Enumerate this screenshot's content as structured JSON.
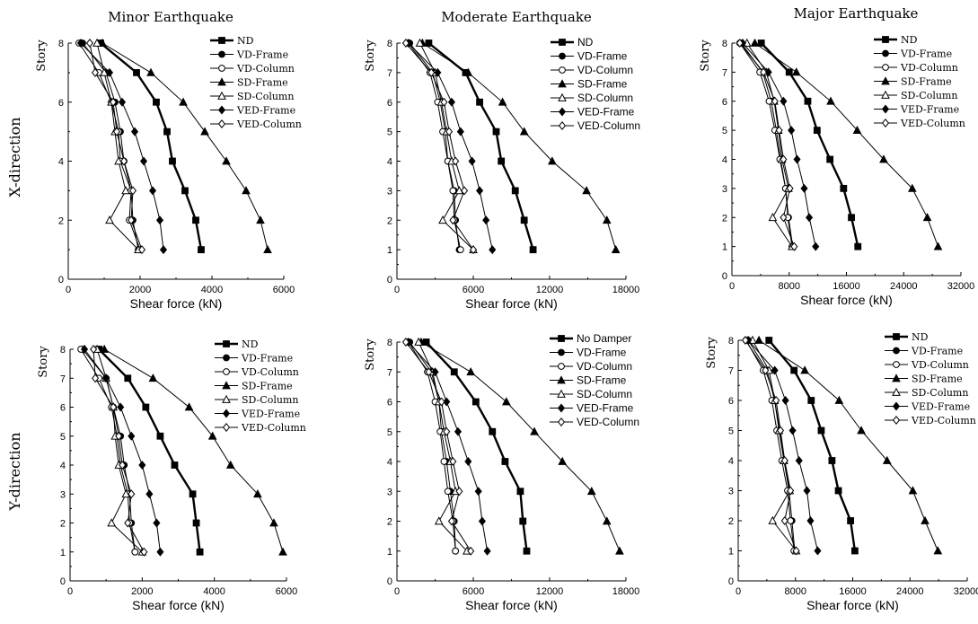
{
  "figure": {
    "column_titles": [
      "Minor Earthquake",
      "Moderate Earthquake",
      "Major Earthquake"
    ],
    "row_labels": [
      "X-direction",
      "Y-direction"
    ]
  },
  "legend_styles": [
    {
      "marker": "square",
      "fill": "filled",
      "thick": true
    },
    {
      "marker": "circle",
      "fill": "filled",
      "thick": false
    },
    {
      "marker": "circle",
      "fill": "open",
      "thick": false
    },
    {
      "marker": "triangle",
      "fill": "filled",
      "thick": false
    },
    {
      "marker": "triangle",
      "fill": "open",
      "thick": false
    },
    {
      "marker": "diamond",
      "fill": "filled",
      "thick": false
    },
    {
      "marker": "diamond",
      "fill": "open",
      "thick": false
    }
  ],
  "chart_data": [
    {
      "type": "line",
      "title": "Minor Earthquake",
      "row": "X-direction",
      "xlabel": "Shear force (kN)",
      "ylabel": "Story",
      "xlim": [
        0,
        6000
      ],
      "xticks": [
        0,
        2000,
        4000,
        6000
      ],
      "ylim": [
        0,
        8
      ],
      "yticks": [
        0,
        2,
        4,
        6,
        8
      ],
      "y": [
        1,
        2,
        3,
        4,
        5,
        6,
        7,
        8
      ],
      "series": [
        {
          "name": "ND",
          "values": [
            3700,
            3550,
            3250,
            2900,
            2750,
            2450,
            1900,
            900
          ]
        },
        {
          "name": "VD-Frame",
          "values": [
            1950,
            1800,
            1750,
            1550,
            1450,
            1300,
            1050,
            400
          ]
        },
        {
          "name": "VD-Column",
          "values": [
            2000,
            1700,
            1750,
            1450,
            1400,
            1200,
            850,
            300
          ]
        },
        {
          "name": "SD-Frame",
          "values": [
            5550,
            5350,
            4950,
            4400,
            3800,
            3200,
            2300,
            950
          ]
        },
        {
          "name": "SD-Column",
          "values": [
            1950,
            1150,
            1600,
            1400,
            1300,
            1200,
            1000,
            800
          ]
        },
        {
          "name": "VED-Frame",
          "values": [
            2650,
            2550,
            2350,
            2100,
            1850,
            1500,
            1150,
            350
          ]
        },
        {
          "name": "VED-Column",
          "values": [
            2050,
            1750,
            1800,
            1550,
            1350,
            1250,
            750,
            600
          ]
        }
      ]
    },
    {
      "type": "line",
      "title": "Moderate Earthquake",
      "row": "X-direction",
      "xlabel": "Shear force (kN)",
      "ylabel": "Story",
      "xlim": [
        0,
        18000
      ],
      "xticks": [
        0,
        6000,
        12000,
        18000
      ],
      "ylim": [
        0,
        8
      ],
      "yticks": [
        0,
        1,
        2,
        3,
        4,
        5,
        6,
        7,
        8
      ],
      "y": [
        1,
        2,
        3,
        4,
        5,
        6,
        7,
        8
      ],
      "series": [
        {
          "name": "ND",
          "values": [
            10700,
            10000,
            9300,
            8200,
            7800,
            6500,
            5400,
            2500
          ]
        },
        {
          "name": "VD-Frame",
          "values": [
            4900,
            4600,
            4500,
            4000,
            3800,
            3400,
            2800,
            1000
          ]
        },
        {
          "name": "VD-Column",
          "values": [
            5000,
            4500,
            4400,
            4000,
            3600,
            3200,
            2600,
            900
          ]
        },
        {
          "name": "SD-Frame",
          "values": [
            17200,
            16500,
            14900,
            12200,
            10000,
            8300,
            5600,
            2000
          ]
        },
        {
          "name": "SD-Column",
          "values": [
            6000,
            3600,
            4900,
            4300,
            3900,
            3500,
            3000,
            1800
          ]
        },
        {
          "name": "VED-Frame",
          "values": [
            7500,
            7000,
            6500,
            5900,
            5000,
            4300,
            3200,
            900
          ]
        },
        {
          "name": "VED-Column",
          "values": [
            6000,
            4400,
            5300,
            4600,
            4100,
            3700,
            2700,
            700
          ]
        }
      ]
    },
    {
      "type": "line",
      "title": "Major Earthquake",
      "row": "X-direction",
      "xlabel": "Shear force (kN)",
      "ylabel": "Story",
      "xlim": [
        0,
        32000
      ],
      "xticks": [
        0,
        8000,
        16000,
        24000,
        32000
      ],
      "ylim": [
        0,
        8
      ],
      "yticks": [
        0,
        1,
        2,
        3,
        4,
        5,
        6,
        7,
        8
      ],
      "y": [
        1,
        2,
        3,
        4,
        5,
        6,
        7,
        8
      ],
      "series": [
        {
          "name": "ND",
          "values": [
            17600,
            16700,
            15600,
            13700,
            11900,
            10600,
            8000,
            4100
          ]
        },
        {
          "name": "VD-Frame",
          "values": [
            8500,
            7900,
            7500,
            6800,
            6200,
            5500,
            4300,
            1300
          ]
        },
        {
          "name": "VD-Column",
          "values": [
            8400,
            7800,
            7500,
            6700,
            6000,
            5200,
            3900,
            1100
          ]
        },
        {
          "name": "SD-Frame",
          "values": [
            28800,
            27300,
            25200,
            21200,
            17500,
            13800,
            9000,
            3200
          ]
        },
        {
          "name": "SD-Column",
          "values": [
            8400,
            5700,
            7900,
            7000,
            6500,
            5900,
            4800,
            2100
          ]
        },
        {
          "name": "VED-Frame",
          "values": [
            11700,
            10800,
            10100,
            9100,
            8300,
            7200,
            5100,
            1500
          ]
        },
        {
          "name": "VED-Column",
          "values": [
            8700,
            7200,
            8100,
            7200,
            6600,
            6000,
            4400,
            1100
          ]
        }
      ]
    },
    {
      "type": "line",
      "title": "",
      "row": "Y-direction",
      "xlabel": "Shear force (kN)",
      "ylabel": "Story",
      "xlim": [
        0,
        6000
      ],
      "xticks": [
        0,
        2000,
        4000,
        6000
      ],
      "ylim": [
        0,
        8
      ],
      "yticks": [
        0,
        1,
        2,
        3,
        4,
        5,
        6,
        7,
        8
      ],
      "y": [
        1,
        2,
        3,
        4,
        5,
        6,
        7,
        8
      ],
      "series": [
        {
          "name": "ND",
          "values": [
            3600,
            3500,
            3400,
            2900,
            2500,
            2100,
            1600,
            800
          ]
        },
        {
          "name": "VD-Frame",
          "values": [
            1800,
            1700,
            1650,
            1500,
            1400,
            1200,
            1000,
            350
          ]
        },
        {
          "name": "VD-Column",
          "values": [
            1800,
            1650,
            1600,
            1400,
            1300,
            1150,
            800,
            300
          ]
        },
        {
          "name": "SD-Frame",
          "values": [
            5900,
            5650,
            5200,
            4450,
            3950,
            3300,
            2300,
            950
          ]
        },
        {
          "name": "SD-Column",
          "values": [
            2000,
            1150,
            1550,
            1350,
            1250,
            1200,
            1000,
            750
          ]
        },
        {
          "name": "VED-Frame",
          "values": [
            2500,
            2400,
            2200,
            2000,
            1700,
            1400,
            1000,
            400
          ]
        },
        {
          "name": "VED-Column",
          "values": [
            2050,
            1600,
            1700,
            1450,
            1350,
            1200,
            700,
            650
          ]
        }
      ]
    },
    {
      "type": "line",
      "title": "",
      "row": "Y-direction",
      "xlabel": "Shear force (kN)",
      "ylabel": "Story",
      "xlim": [
        0,
        18000
      ],
      "xticks": [
        0,
        6000,
        12000,
        18000
      ],
      "ylim": [
        0,
        8
      ],
      "yticks": [
        0,
        1,
        2,
        3,
        4,
        5,
        6,
        7,
        8
      ],
      "y": [
        1,
        2,
        3,
        4,
        5,
        6,
        7,
        8
      ],
      "series": [
        {
          "name": "No Damper",
          "values": [
            10200,
            9900,
            9700,
            8500,
            7500,
            6200,
            4500,
            2300
          ]
        },
        {
          "name": "VD-Frame",
          "values": [
            4600,
            4500,
            4200,
            3900,
            3500,
            3300,
            2700,
            1000
          ]
        },
        {
          "name": "VD-Column",
          "values": [
            4600,
            4400,
            4000,
            3700,
            3400,
            3000,
            2400,
            900
          ]
        },
        {
          "name": "SD-Frame",
          "values": [
            17500,
            16500,
            15300,
            13000,
            10800,
            8600,
            5800,
            1900
          ]
        },
        {
          "name": "SD-Column",
          "values": [
            5500,
            3300,
            4600,
            4200,
            3700,
            3300,
            2800,
            1700
          ]
        },
        {
          "name": "VED-Frame",
          "values": [
            7100,
            6700,
            6400,
            5600,
            4800,
            3900,
            3000,
            900
          ]
        },
        {
          "name": "VED-Column",
          "values": [
            5800,
            4300,
            4900,
            4400,
            3900,
            3500,
            2500,
            700
          ]
        }
      ]
    },
    {
      "type": "line",
      "title": "",
      "row": "Y-direction",
      "xlabel": "Shear force (kN)",
      "ylabel": "Story",
      "xlim": [
        0,
        32000
      ],
      "xticks": [
        0,
        8000,
        16000,
        24000,
        32000
      ],
      "ylim": [
        0,
        8
      ],
      "yticks": [
        0,
        1,
        2,
        3,
        4,
        5,
        6,
        7,
        8
      ],
      "y": [
        1,
        2,
        3,
        4,
        5,
        6,
        7,
        8
      ],
      "series": [
        {
          "name": "ND",
          "values": [
            16300,
            15700,
            14000,
            13100,
            11600,
            10200,
            7800,
            4300
          ]
        },
        {
          "name": "VD-Frame",
          "values": [
            7900,
            7500,
            7100,
            6400,
            5800,
            5100,
            4000,
            1400
          ]
        },
        {
          "name": "VD-Column",
          "values": [
            7800,
            7300,
            6900,
            6100,
            5400,
            4700,
            3500,
            1100
          ]
        },
        {
          "name": "SD-Frame",
          "values": [
            27900,
            26100,
            24400,
            20800,
            17200,
            14100,
            9300,
            2900
          ]
        },
        {
          "name": "SD-Column",
          "values": [
            8100,
            4800,
            7200,
            6400,
            5700,
            5100,
            4300,
            2000
          ]
        },
        {
          "name": "VED-Frame",
          "values": [
            11100,
            10100,
            9600,
            8500,
            7600,
            6600,
            5100,
            1400
          ]
        },
        {
          "name": "VED-Column",
          "values": [
            8100,
            6500,
            7300,
            6500,
            5900,
            5300,
            3800,
            1000
          ]
        }
      ]
    }
  ]
}
